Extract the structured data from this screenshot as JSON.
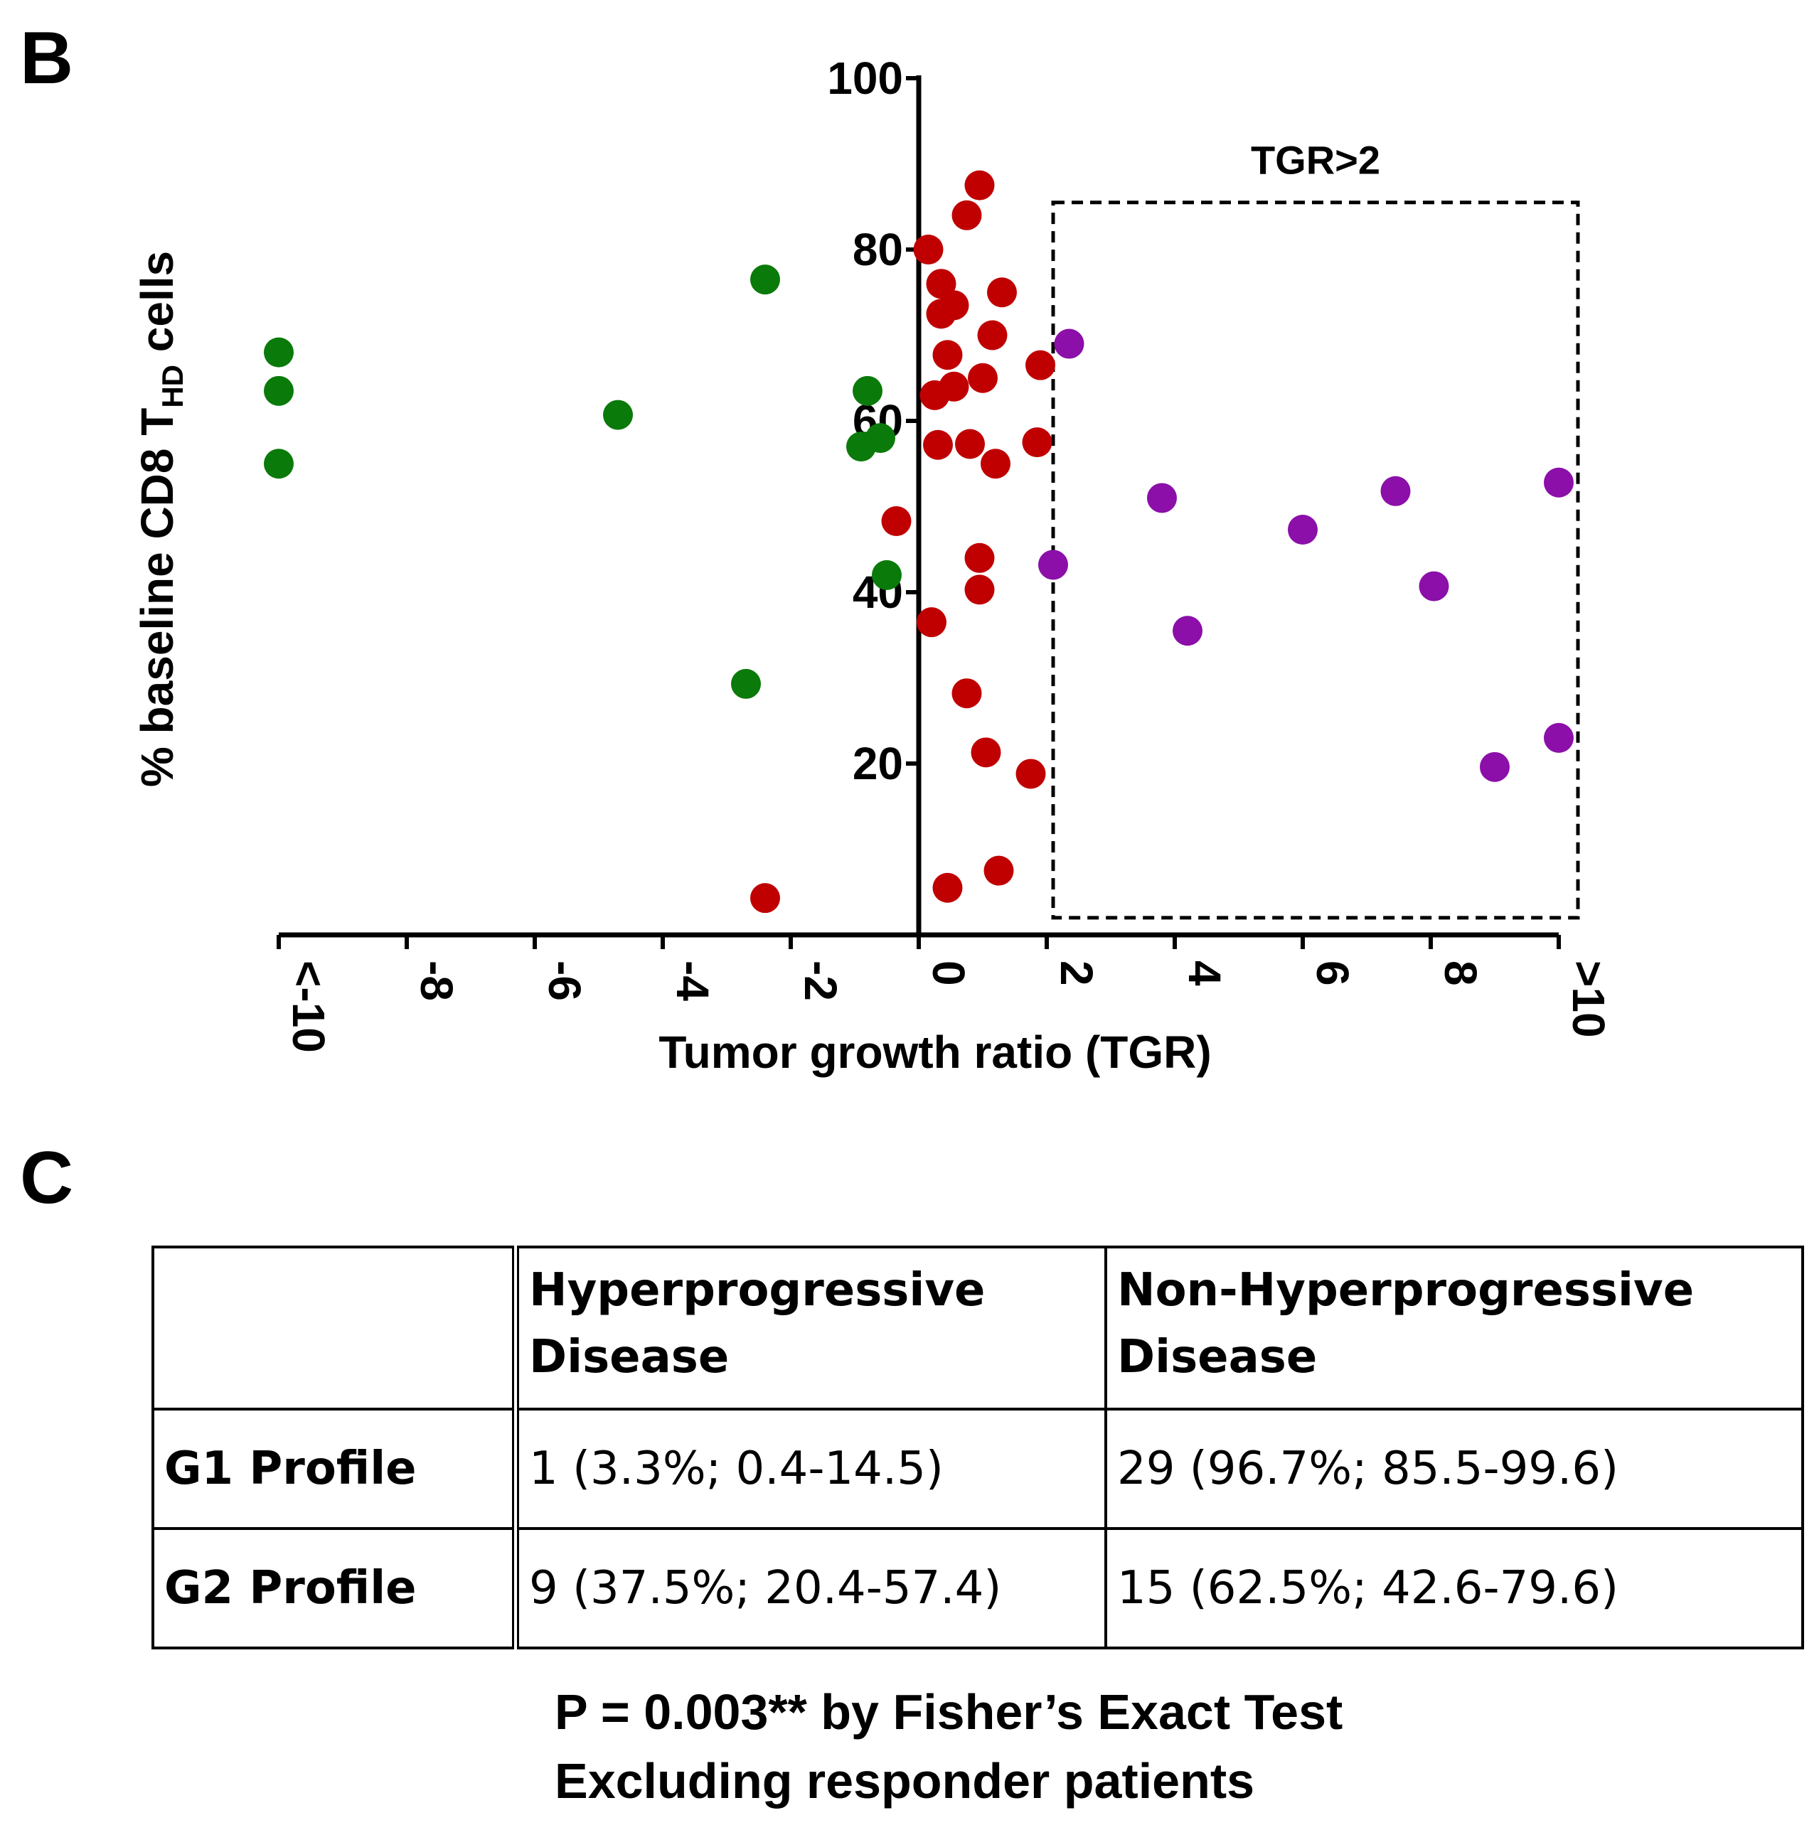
{
  "panel_b": {
    "letter": "B",
    "chart_data": {
      "type": "scatter",
      "title": "",
      "xlabel": "Tumor growth ratio (TGR)",
      "ylabel": "% baseline CD8 T",
      "ylabel_sub": "HD",
      "ylabel_suffix": " cells",
      "xlim": [
        -10,
        10
      ],
      "ylim": [
        0,
        100
      ],
      "x_ticks": [
        {
          "value": -10,
          "label": "<-10"
        },
        {
          "value": -8,
          "label": "-8"
        },
        {
          "value": -6,
          "label": "-6"
        },
        {
          "value": -4,
          "label": "-4"
        },
        {
          "value": -2,
          "label": "-2"
        },
        {
          "value": 0,
          "label": "0"
        },
        {
          "value": 2,
          "label": "2"
        },
        {
          "value": 4,
          "label": "4"
        },
        {
          "value": 6,
          "label": "6"
        },
        {
          "value": 8,
          "label": "8"
        },
        {
          "value": 10,
          "label": ">10"
        }
      ],
      "y_ticks": [
        {
          "value": 20,
          "label": "20"
        },
        {
          "value": 40,
          "label": "40"
        },
        {
          "value": 60,
          "label": "60"
        },
        {
          "value": 80,
          "label": "80"
        },
        {
          "value": 100,
          "label": "100"
        }
      ],
      "grid": false,
      "annotation": {
        "label": "TGR>2",
        "x_range": [
          2.1,
          10.3
        ],
        "y_range": [
          2,
          85.5
        ]
      },
      "series": [
        {
          "name": "green",
          "color": "#0a7a0a",
          "points": [
            [
              -10,
              68
            ],
            [
              -10,
              63.5
            ],
            [
              -10,
              55
            ],
            [
              -2.4,
              76.5
            ],
            [
              -4.7,
              60.7
            ],
            [
              -0.8,
              63.5
            ],
            [
              -0.6,
              58
            ],
            [
              -0.9,
              57
            ],
            [
              -0.5,
              42
            ],
            [
              -2.7,
              29.3
            ]
          ]
        },
        {
          "name": "red",
          "color": "#c00000",
          "points": [
            [
              0.95,
              87.5
            ],
            [
              0.75,
              84
            ],
            [
              0.15,
              80
            ],
            [
              0.35,
              76
            ],
            [
              1.3,
              75
            ],
            [
              0.55,
              73.5
            ],
            [
              0.35,
              72.5
            ],
            [
              1.15,
              70
            ],
            [
              0.45,
              67.7
            ],
            [
              1.9,
              66.5
            ],
            [
              1.0,
              65
            ],
            [
              0.55,
              64
            ],
            [
              0.25,
              63
            ],
            [
              0.3,
              57.2
            ],
            [
              0.8,
              57.3
            ],
            [
              1.85,
              57.5
            ],
            [
              1.2,
              55
            ],
            [
              -0.35,
              48.3
            ],
            [
              0.95,
              44
            ],
            [
              0.95,
              40.3
            ],
            [
              0.2,
              36.5
            ],
            [
              0.75,
              28.2
            ],
            [
              1.05,
              21.3
            ],
            [
              1.75,
              18.8
            ],
            [
              1.25,
              7.5
            ],
            [
              0.45,
              5.5
            ],
            [
              -2.4,
              4.3
            ]
          ]
        },
        {
          "name": "purple",
          "color": "#8b0fa8",
          "points": [
            [
              2.35,
              69
            ],
            [
              2.1,
              43.2
            ],
            [
              3.8,
              51
            ],
            [
              4.2,
              35.5
            ],
            [
              6.0,
              47.3
            ],
            [
              7.45,
              51.8
            ],
            [
              8.05,
              40.7
            ],
            [
              9.0,
              19.6
            ],
            [
              10.0,
              52.8
            ],
            [
              10.0,
              23
            ]
          ]
        }
      ]
    }
  },
  "panel_c": {
    "letter": "C",
    "table": {
      "headers": [
        "",
        "Hyperprogressive Disease",
        "Non-Hyperprogressive Disease"
      ],
      "rows": [
        [
          "G1 Profile",
          "1 (3.3%; 0.4-14.5)",
          "29 (96.7%; 85.5-99.6)"
        ],
        [
          "G2 Profile",
          "9 (37.5%; 20.4-57.4)",
          "15 (62.5%; 42.6-79.6)"
        ]
      ]
    },
    "footnote_line1": "P = 0.003** by Fisher’s Exact Test",
    "footnote_line2": "Excluding responder patients"
  }
}
